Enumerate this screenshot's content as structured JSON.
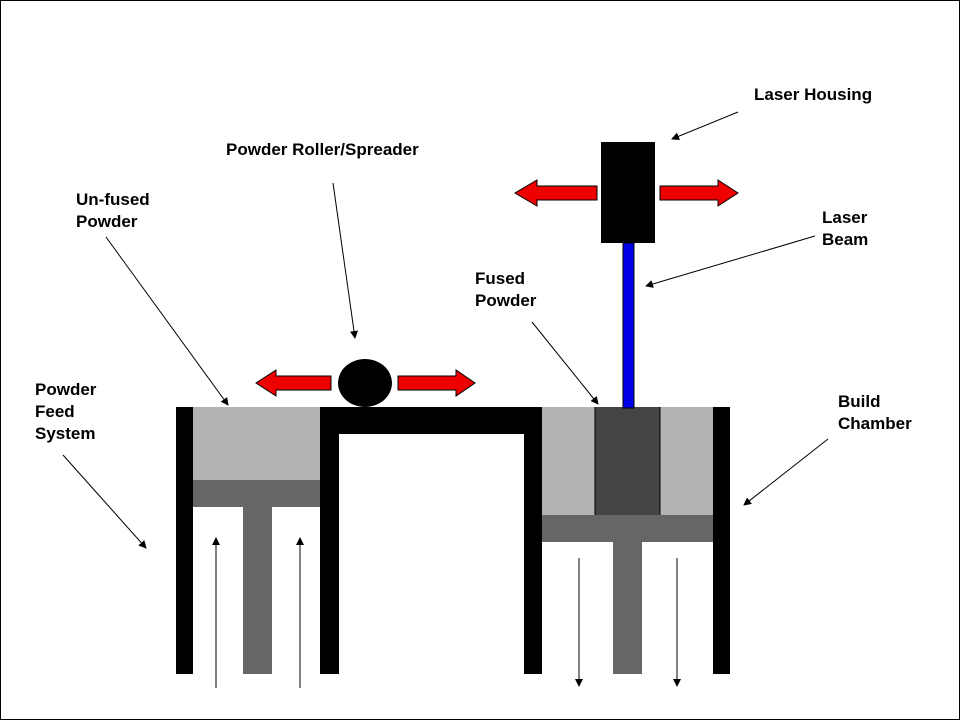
{
  "labels": {
    "laser_housing": "Laser Housing",
    "powder_roller": "Powder Roller/Spreader",
    "unfused_1": "Un-fused",
    "unfused_2": "Powder",
    "laser_beam_1": "Laser",
    "laser_beam_2": "Beam",
    "fused_1": "Fused",
    "fused_2": "Powder",
    "powder_feed_1": "Powder",
    "powder_feed_2": "Feed",
    "powder_feed_3": "System",
    "build_chamber_1": "Build",
    "build_chamber_2": "Chamber"
  },
  "colors": {
    "wall": "#000000",
    "unfused_powder": "#b3b3b3",
    "fused_powder": "#444444",
    "piston": "#666666",
    "laser_beam": "#0000e6",
    "motion_arrow": "#ee0000",
    "leader_line": "#000000"
  },
  "icons": {
    "motion_arrows": "red-double-headed-arrow",
    "roller": "black-ellipse",
    "piston_direction_feed": "arrow-up",
    "piston_direction_build": "arrow-down"
  }
}
